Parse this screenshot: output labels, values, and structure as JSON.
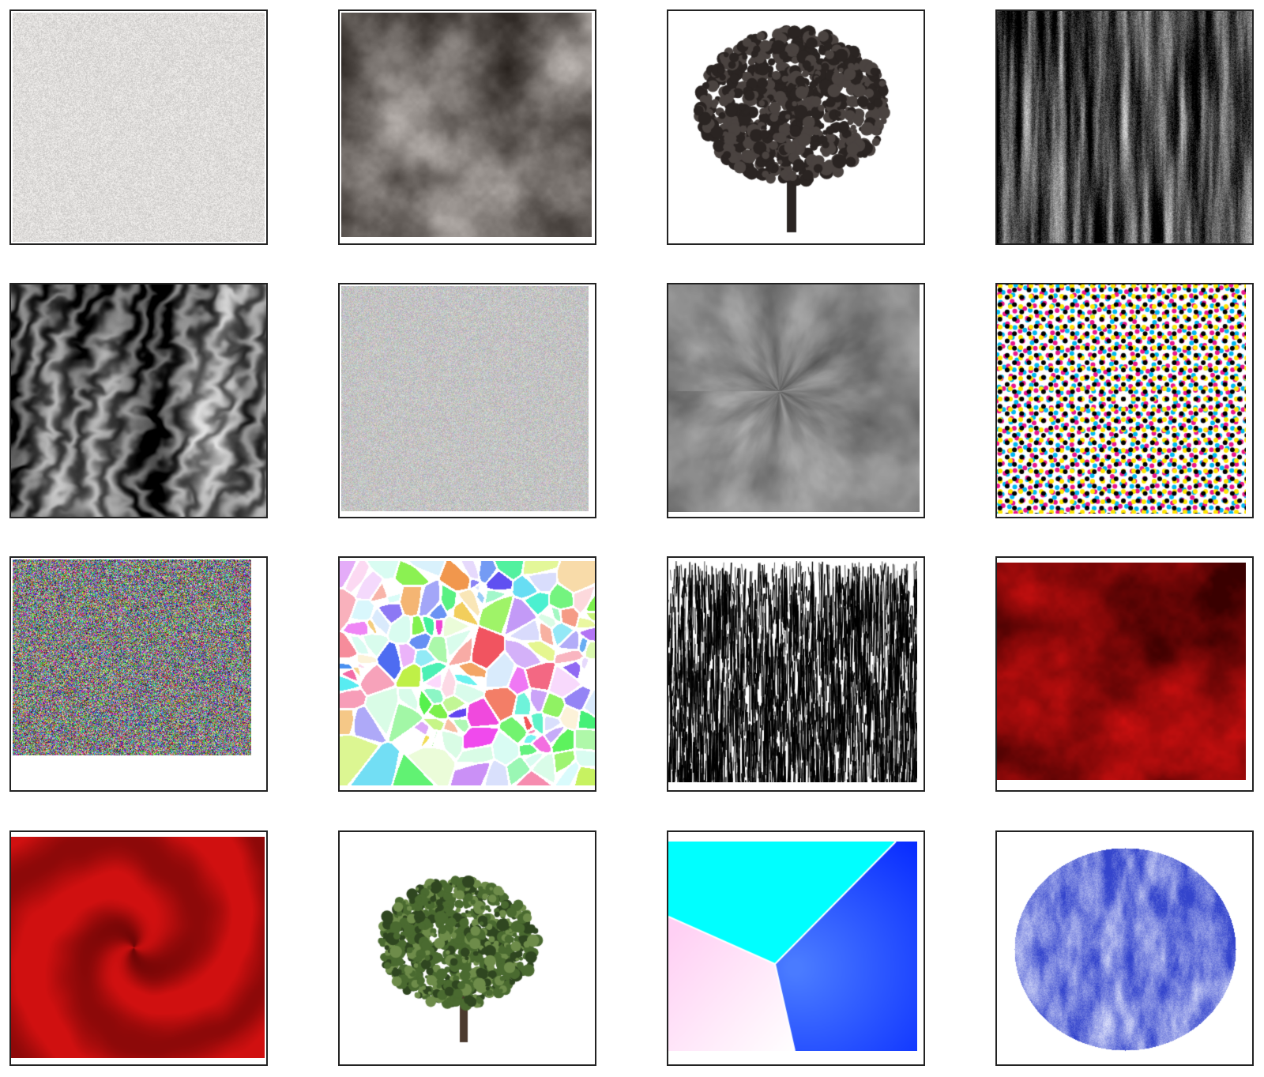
{
  "tiles": [
    {
      "name": "fine-gray-noise-texture",
      "style": "gray-noise"
    },
    {
      "name": "dark-smoke-clouds-texture",
      "style": "smoke-clouds"
    },
    {
      "name": "dark-tree-silhouette-image",
      "style": "tree-dark"
    },
    {
      "name": "vertical-streaks-texture",
      "style": "vertical-streaks"
    },
    {
      "name": "wavy-marble-texture",
      "style": "wavy-marble"
    },
    {
      "name": "colored-speckle-texture",
      "style": "color-speckle"
    },
    {
      "name": "radial-smoke-texture",
      "style": "radial-smoke"
    },
    {
      "name": "cmyk-halftone-dots-texture",
      "style": "halftone"
    },
    {
      "name": "rgb-static-noise-texture",
      "style": "rgb-noise"
    },
    {
      "name": "pastel-voronoi-cells-texture",
      "style": "voronoi"
    },
    {
      "name": "black-scratch-lines-texture",
      "style": "scratches"
    },
    {
      "name": "red-clouds-texture",
      "style": "red-clouds"
    },
    {
      "name": "red-swirl-texture",
      "style": "red-swirl"
    },
    {
      "name": "green-tree-image",
      "style": "tree-green"
    },
    {
      "name": "three-region-gradient-texture",
      "style": "three-regions"
    },
    {
      "name": "blue-noise-disc-texture",
      "style": "blue-disc"
    }
  ],
  "colors": {
    "border": "#222222",
    "red_dark": "#3a0000",
    "red_bright": "#d01010",
    "cyan": "#00ffff",
    "blue": "#0022ff",
    "pink": "#ffd0f4",
    "disc_blue": "#3344cc",
    "tree_dark": "#2a2422",
    "tree_green": "#4a6a30"
  }
}
